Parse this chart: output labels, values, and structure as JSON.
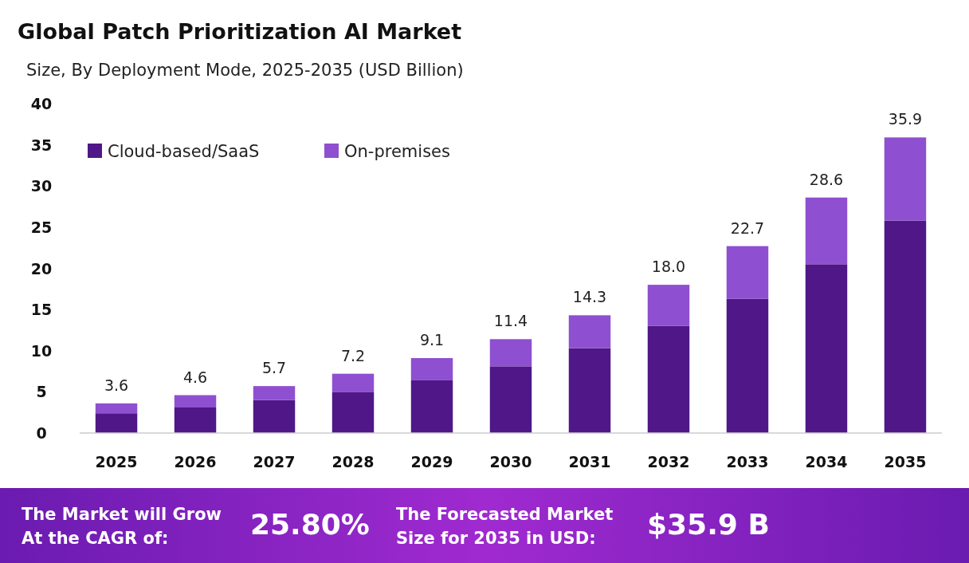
{
  "chart_data": {
    "type": "bar",
    "title": "Global Patch Prioritization AI Market",
    "subtitle": "Size, By Deployment Mode, 2025-2035 (USD Billion)",
    "categories": [
      "2025",
      "2026",
      "2027",
      "2028",
      "2029",
      "2030",
      "2031",
      "2032",
      "2033",
      "2034",
      "2035"
    ],
    "series": [
      {
        "name": "Cloud-based/SaaS",
        "color": "#4f1787",
        "values": [
          2.4,
          3.1,
          4.0,
          5.0,
          6.4,
          8.1,
          10.3,
          13.0,
          16.3,
          20.5,
          25.8
        ]
      },
      {
        "name": "On-premises",
        "color": "#8e4fd0",
        "values": [
          1.2,
          1.5,
          1.7,
          2.2,
          2.7,
          3.3,
          4.0,
          5.0,
          6.4,
          8.1,
          10.1
        ]
      }
    ],
    "stacked": true,
    "totals": [
      "3.6",
      "4.6",
      "5.7",
      "7.2",
      "9.1",
      "11.4",
      "14.3",
      "18.0",
      "22.7",
      "28.6",
      "35.9"
    ],
    "ylim": [
      0,
      40
    ],
    "yticks": [
      0,
      5,
      10,
      15,
      20,
      25,
      30,
      35,
      40
    ],
    "grid": false,
    "legend": "top left",
    "annotations": [
      "The Market will Grow At the CAGR of:",
      "25.80%",
      "The Forecasted Market Size for 2035 in USD:",
      "$35.9 B"
    ]
  }
}
